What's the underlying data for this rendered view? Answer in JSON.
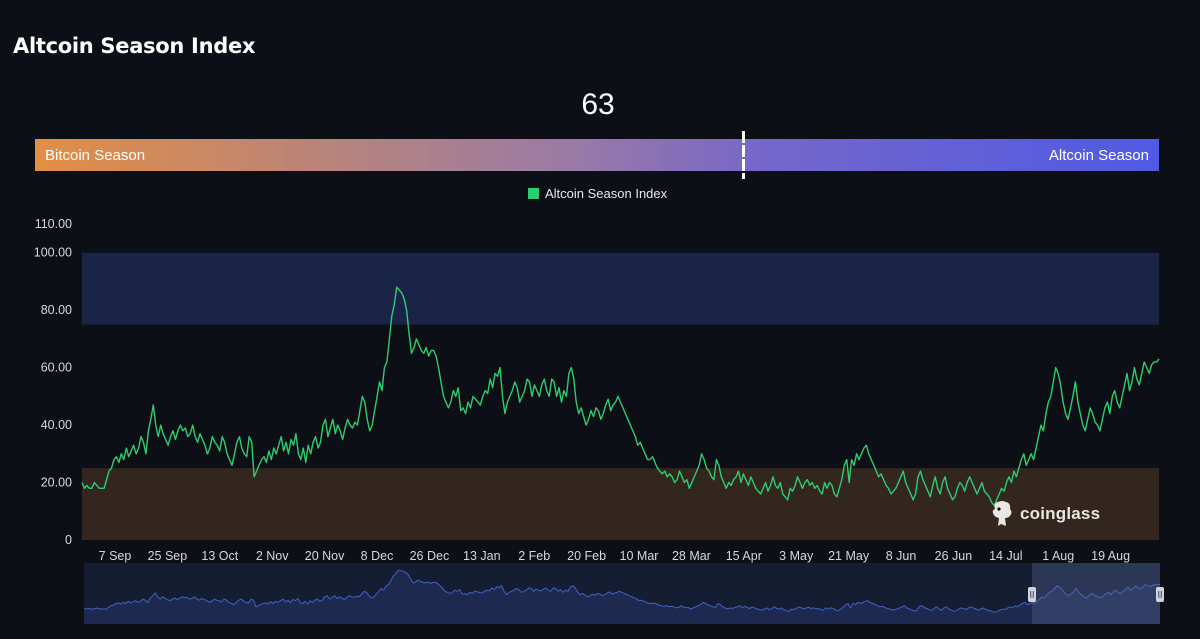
{
  "page": {
    "title": "Altcoin Season Index"
  },
  "gauge": {
    "value": "63",
    "value_num": 63,
    "left_label": "Bitcoin Season",
    "right_label": "Altcoin Season",
    "colors": {
      "start": "#e38e45",
      "end": "#4f5ae3"
    }
  },
  "watermark": {
    "text": "coinglass"
  },
  "chart_data": {
    "type": "line",
    "legend": {
      "position": "top-center",
      "entries": [
        {
          "name": "Altcoin Season Index",
          "color": "#2ecc71"
        }
      ]
    },
    "y_ticks": [
      "0",
      "20.00",
      "40.00",
      "60.00",
      "80.00",
      "100.00",
      "110.00"
    ],
    "y_tick_values": [
      0,
      20,
      40,
      60,
      80,
      100,
      110
    ],
    "ylim": [
      0,
      110
    ],
    "bands": [
      {
        "from": 75,
        "to": 100,
        "color": "#1a2447"
      },
      {
        "from": 0,
        "to": 25,
        "color": "#33261f"
      }
    ],
    "x_ticks": [
      "7 Sep",
      "25 Sep",
      "13 Oct",
      "2 Nov",
      "20 Nov",
      "8 Dec",
      "26 Dec",
      "13 Jan",
      "2 Feb",
      "20 Feb",
      "10 Mar",
      "28 Mar",
      "15 Apr",
      "3 May",
      "21 May",
      "8 Jun",
      "26 Jun",
      "14 Jul",
      "1 Aug",
      "19 Aug"
    ],
    "grid": false,
    "series": [
      {
        "name": "Altcoin Season Index",
        "color": "#2ecc71",
        "values": [
          20,
          18,
          19,
          18,
          18,
          20,
          19,
          18,
          18,
          18,
          21,
          24,
          25,
          28,
          29,
          27,
          30,
          28,
          32,
          29,
          31,
          33,
          30,
          32,
          36,
          34,
          30,
          38,
          42,
          47,
          40,
          36,
          40,
          37,
          35,
          33,
          36,
          38,
          35,
          38,
          40,
          38,
          39,
          36,
          37,
          40,
          36,
          34,
          37,
          35,
          33,
          30,
          32,
          36,
          34,
          33,
          31,
          36,
          34,
          30,
          28,
          26,
          30,
          34,
          36,
          32,
          30,
          29,
          36,
          34,
          22,
          24,
          26,
          28,
          29,
          27,
          31,
          28,
          32,
          30,
          33,
          36,
          31,
          34,
          30,
          35,
          33,
          37,
          30,
          28,
          32,
          27,
          33,
          30,
          34,
          36,
          32,
          34,
          40,
          42,
          36,
          39,
          42,
          37,
          40,
          38,
          35,
          39,
          42,
          40,
          39,
          41,
          40,
          45,
          50,
          48,
          42,
          38,
          40,
          45,
          50,
          55,
          52,
          60,
          62,
          70,
          78,
          82,
          88,
          87,
          86,
          84,
          80,
          72,
          65,
          67,
          70,
          68,
          66,
          65,
          67,
          64,
          66,
          66,
          64,
          60,
          55,
          50,
          48,
          46,
          48,
          52,
          50,
          53,
          45,
          46,
          44,
          48,
          46,
          50,
          49,
          48,
          47,
          50,
          52,
          51,
          56,
          53,
          58,
          57,
          60,
          50,
          44,
          48,
          50,
          52,
          55,
          53,
          48,
          50,
          52,
          56,
          55,
          50,
          54,
          52,
          50,
          54,
          56,
          52,
          50,
          56,
          55,
          50,
          53,
          48,
          52,
          50,
          58,
          60,
          56,
          48,
          44,
          46,
          43,
          40,
          42,
          45,
          43,
          46,
          45,
          42,
          44,
          47,
          49,
          45,
          47,
          48,
          50,
          48,
          46,
          44,
          42,
          40,
          38,
          36,
          33,
          34,
          32,
          30,
          28,
          28,
          29,
          27,
          25,
          24,
          23,
          24,
          22,
          23,
          22,
          20,
          21,
          24,
          22,
          20,
          21,
          18,
          20,
          22,
          24,
          26,
          30,
          28,
          25,
          24,
          22,
          21,
          28,
          26,
          22,
          20,
          18,
          20,
          19,
          21,
          22,
          24,
          20,
          23,
          21,
          19,
          22,
          20,
          18,
          17,
          16,
          18,
          20,
          17,
          19,
          22,
          19,
          18,
          20,
          16,
          15,
          14,
          18,
          17,
          19,
          22,
          20,
          18,
          20,
          21,
          19,
          20,
          18,
          19,
          17,
          16,
          20,
          18,
          20,
          19,
          16,
          15,
          18,
          21,
          26,
          28,
          20,
          28,
          26,
          30,
          28,
          30,
          32,
          33,
          30,
          28,
          26,
          24,
          22,
          23,
          21,
          19,
          18,
          16,
          17,
          18,
          20,
          22,
          24,
          20,
          18,
          16,
          14,
          16,
          22,
          24,
          21,
          19,
          17,
          15,
          19,
          22,
          18,
          16,
          20,
          22,
          18,
          16,
          14,
          15,
          18,
          20,
          19,
          17,
          20,
          22,
          20,
          18,
          16,
          18,
          20,
          17,
          16,
          15,
          13,
          12,
          14,
          16,
          18,
          17,
          20,
          22,
          20,
          24,
          22,
          25,
          28,
          30,
          26,
          28,
          30,
          28,
          32,
          36,
          40,
          38,
          44,
          48,
          50,
          55,
          60,
          58,
          54,
          48,
          44,
          42,
          46,
          50,
          55,
          48,
          44,
          40,
          38,
          42,
          46,
          44,
          41,
          40,
          38,
          42,
          46,
          48,
          44,
          50,
          52,
          48,
          46,
          50,
          54,
          58,
          52,
          55,
          60,
          56,
          54,
          58,
          62,
          60,
          58,
          61,
          62,
          62,
          63
        ]
      }
    ]
  }
}
